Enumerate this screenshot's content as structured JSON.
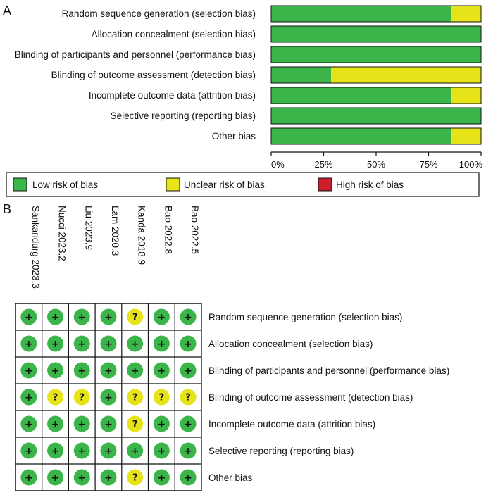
{
  "panels": {
    "a": "A",
    "b": "B"
  },
  "colors": {
    "low": "#3bb54a",
    "unclear": "#e6e319",
    "high": "#cc1f2b",
    "border": "#111111"
  },
  "legend": {
    "low": "Low risk of bias",
    "unclear": "Unclear risk of bias",
    "high": "High risk of bias"
  },
  "chart_data": [
    {
      "type": "bar",
      "orientation": "horizontal",
      "stacked": true,
      "title": "",
      "xlabel": "",
      "ylabel": "",
      "xlim": [
        0,
        100
      ],
      "ticks": [
        "0%",
        "25%",
        "50%",
        "75%",
        "100%"
      ],
      "categories": [
        "Random sequence generation (selection bias)",
        "Allocation concealment (selection bias)",
        "Blinding of participants and personnel (performance bias)",
        "Blinding of outcome assessment (detection bias)",
        "Incomplete outcome data (attrition bias)",
        "Selective reporting (reporting bias)",
        "Other bias"
      ],
      "series": [
        {
          "name": "Low risk of bias",
          "values": [
            85.7,
            100,
            100,
            28.6,
            85.7,
            100,
            85.7
          ]
        },
        {
          "name": "Unclear risk of bias",
          "values": [
            14.3,
            0,
            0,
            71.4,
            14.3,
            0,
            14.3
          ]
        },
        {
          "name": "High risk of bias",
          "values": [
            0,
            0,
            0,
            0,
            0,
            0,
            0
          ]
        }
      ],
      "legend_position": "bottom"
    },
    {
      "type": "table",
      "title": "",
      "studies": [
        "Sankaridurg 2023.3",
        "Nucci 2023.2",
        "Liu 2023.9",
        "Lam 2020.3",
        "Kanda 2018.9",
        "Bao 2022.8",
        "Bao 2022.5"
      ],
      "domains": [
        "Random sequence generation (selection bias)",
        "Allocation concealment (selection bias)",
        "Blinding of participants and personnel (performance bias)",
        "Blinding of outcome assessment (detection bias)",
        "Incomplete outcome data (attrition bias)",
        "Selective reporting (reporting bias)",
        "Other bias"
      ],
      "symbols": {
        "low": "+",
        "unclear": "?",
        "high": "-"
      },
      "judgements": [
        [
          "low",
          "low",
          "low",
          "low",
          "unclear",
          "low",
          "low"
        ],
        [
          "low",
          "low",
          "low",
          "low",
          "low",
          "low",
          "low"
        ],
        [
          "low",
          "low",
          "low",
          "low",
          "low",
          "low",
          "low"
        ],
        [
          "low",
          "unclear",
          "unclear",
          "low",
          "unclear",
          "unclear",
          "unclear"
        ],
        [
          "low",
          "low",
          "low",
          "low",
          "unclear",
          "low",
          "low"
        ],
        [
          "low",
          "low",
          "low",
          "low",
          "low",
          "low",
          "low"
        ],
        [
          "low",
          "low",
          "low",
          "low",
          "unclear",
          "low",
          "low"
        ]
      ]
    }
  ]
}
